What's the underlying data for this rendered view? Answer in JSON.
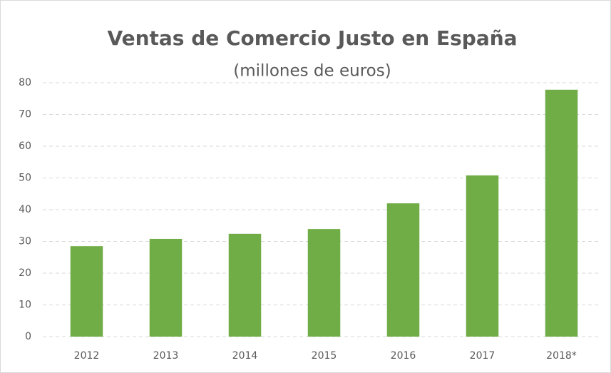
{
  "chart_data": {
    "type": "bar",
    "title": "Ventas de Comercio Justo en España",
    "subtitle": "(millones de euros)",
    "categories": [
      "2012",
      "2013",
      "2014",
      "2015",
      "2016",
      "2017",
      "2018*"
    ],
    "values": [
      28.5,
      30.8,
      32.4,
      33.9,
      42,
      50.8,
      77.8
    ],
    "color": "#70ad47",
    "ylim": [
      0,
      80
    ],
    "yticks": [
      0,
      10,
      20,
      30,
      40,
      50,
      60,
      70,
      80
    ],
    "grid": true
  }
}
